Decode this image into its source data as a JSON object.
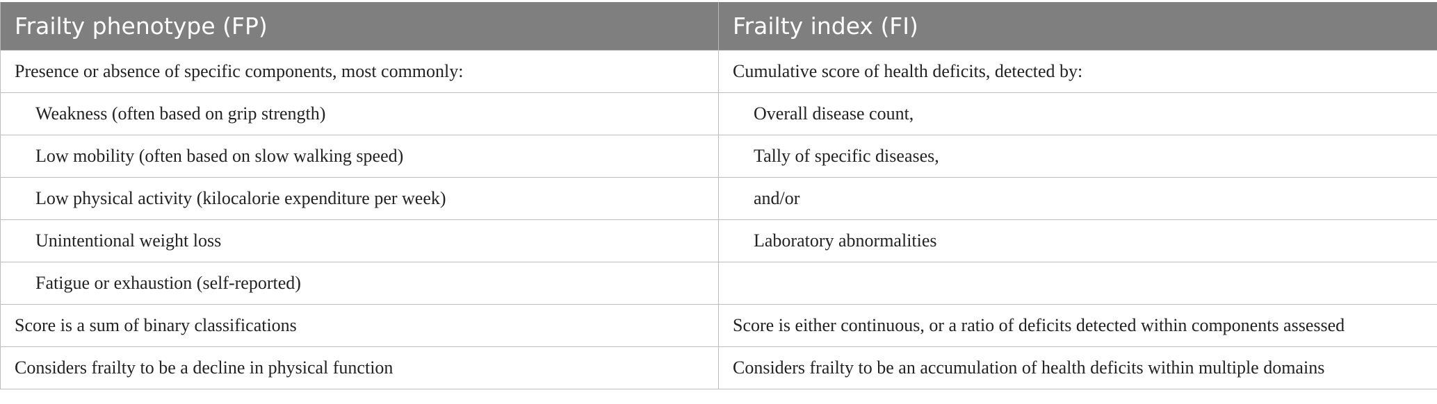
{
  "table": {
    "headers": [
      "Frailty phenotype (FP)",
      "Frailty index (FI)"
    ],
    "rows": [
      {
        "fp": "Presence or absence of specific components, most commonly:",
        "fi": "Cumulative score of health deficits, detected by:",
        "fp_indent": false,
        "fi_indent": false
      },
      {
        "fp": "Weakness (often based on grip strength)",
        "fi": "Overall disease count,",
        "fp_indent": true,
        "fi_indent": true
      },
      {
        "fp": "Low mobility (often based on slow walking speed)",
        "fi": "Tally of specific diseases,",
        "fp_indent": true,
        "fi_indent": true
      },
      {
        "fp": "Low physical activity (kilocalorie expenditure per week)",
        "fi": "and/or",
        "fp_indent": true,
        "fi_indent": true
      },
      {
        "fp": "Unintentional weight loss",
        "fi": "Laboratory abnormalities",
        "fp_indent": true,
        "fi_indent": true
      },
      {
        "fp": "Fatigue or exhaustion (self-reported)",
        "fi": "",
        "fp_indent": true,
        "fi_indent": true
      },
      {
        "fp": "Score is a sum of binary classifications",
        "fi": "Score is either continuous, or a ratio of deficits detected within components assessed",
        "fp_indent": false,
        "fi_indent": false
      },
      {
        "fp": "Considers frailty to be a decline in physical function",
        "fi": "Considers frailty to be an accumulation of health deficits within multiple domains",
        "fp_indent": false,
        "fi_indent": false
      }
    ]
  },
  "colors": {
    "header_bg": "#7f7f7f",
    "header_text": "#ffffff",
    "border": "#bdbdbd",
    "body_text": "#222222"
  }
}
